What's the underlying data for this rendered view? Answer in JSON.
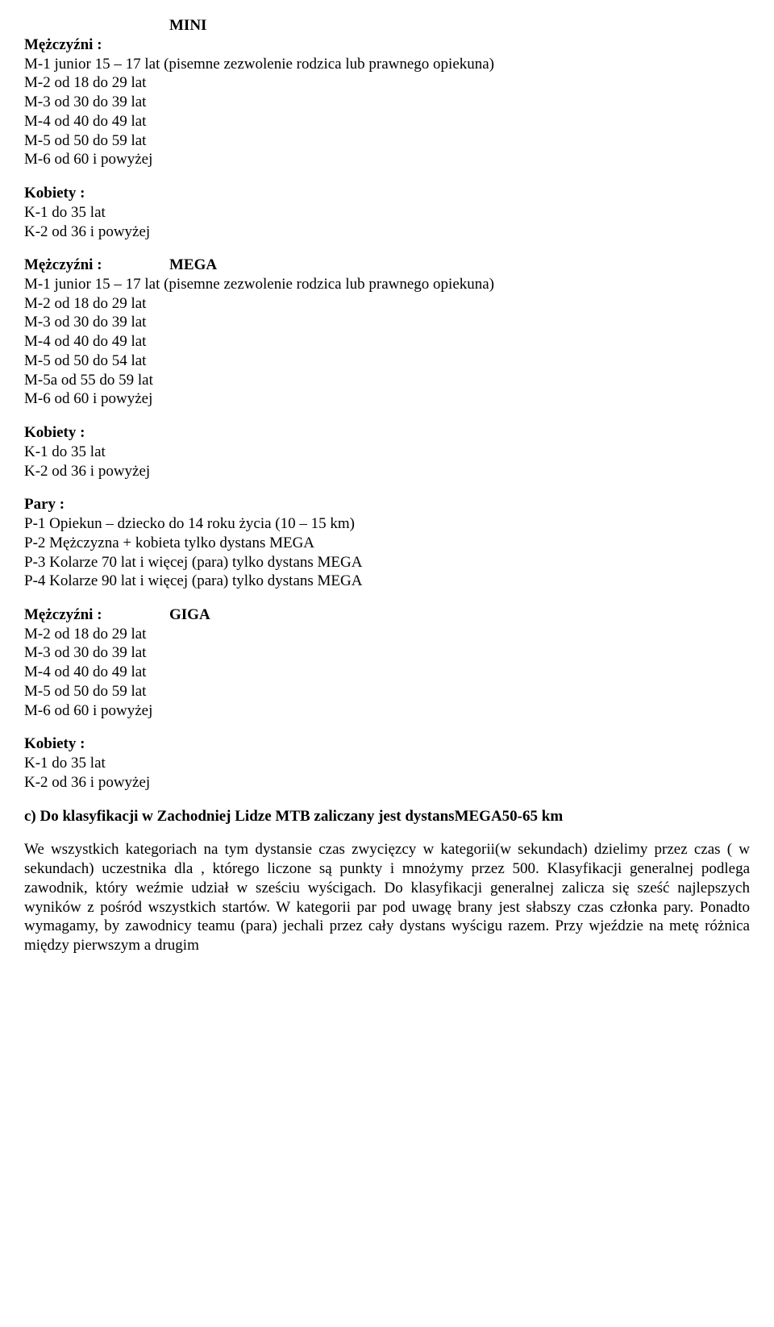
{
  "mini": {
    "heading": "MINI",
    "men_label": "Mężczyźni :",
    "men_lines": [
      "M-1 junior 15 – 17 lat (pisemne zezwolenie rodzica lub prawnego opiekuna)",
      "M-2 od 18 do 29 lat",
      "M-3 od 30 do 39 lat",
      "M-4 od 40 do 49 lat",
      "M-5 od 50 do 59 lat",
      "M-6 od 60 i powyżej"
    ],
    "women_label": "Kobiety :",
    "women_lines": [
      "K-1 do 35 lat",
      "K-2 od 36 i powyżej"
    ]
  },
  "mega": {
    "heading": "MEGA",
    "men_label": "Mężczyźni :",
    "men_lines": [
      "M-1 junior 15 – 17 lat (pisemne zezwolenie rodzica lub prawnego opiekuna)",
      "M-2 od 18 do 29 lat",
      "M-3 od 30 do 39 lat",
      "M-4 od 40 do 49 lat",
      "M-5 od 50 do 54 lat",
      "M-5a od 55 do 59 lat",
      "M-6 od 60 i powyżej"
    ],
    "women_label": "Kobiety :",
    "women_lines": [
      "K-1 do 35 lat",
      "K-2 od 36 i powyżej"
    ],
    "pairs_label": "Pary :",
    "pairs_lines": [
      "P-1 Opiekun – dziecko do 14 roku życia (10 – 15 km)",
      "P-2 Mężczyzna + kobieta tylko dystans MEGA",
      "P-3 Kolarze 70 lat i więcej (para) tylko dystans MEGA",
      "P-4 Kolarze 90 lat i więcej (para) tylko dystans MEGA"
    ]
  },
  "giga": {
    "heading": "GIGA",
    "men_label": "Mężczyźni :",
    "men_lines": [
      "M-2 od 18 do 29 lat",
      "M-3 od 30 do 39 lat",
      "M-4 od 40 do 49 lat",
      "M-5 od 50 do 59 lat",
      "M-6 od 60 i powyżej"
    ],
    "women_label": "Kobiety :",
    "women_lines": [
      "K-1 do 35 lat",
      "K-2 od 36 i powyżej"
    ]
  },
  "footer": {
    "heading": "c) Do klasyfikacji w Zachodniej Lidze MTB zaliczany jest dystansMEGA50-65 km",
    "paragraph": "We wszystkich kategoriach na tym dystansie czas zwycięzcy w kategorii(w sekundach) dzielimy przez czas ( w sekundach) uczestnika dla , którego liczone są punkty i  mnożymy przez 500. Klasyfikacji generalnej podlega zawodnik, który weźmie udział w sześciu wyścigach. Do klasyfikacji  generalnej zalicza się sześć najlepszych wyników z pośród wszystkich startów. W kategorii par pod uwagę brany jest słabszy czas członka pary.  Ponadto wymagamy, by zawodnicy teamu (para) jechali przez cały dystans wyścigu razem. Przy wjeździe na metę różnica między pierwszym a drugim"
  }
}
